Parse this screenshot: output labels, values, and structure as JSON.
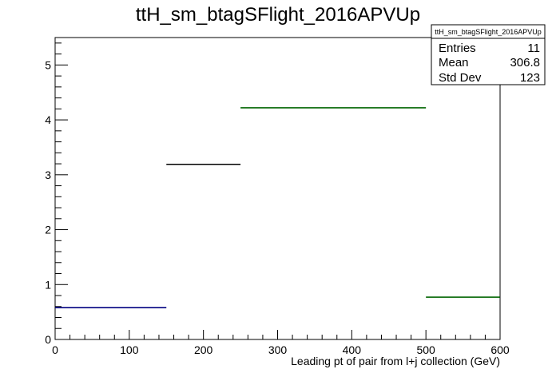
{
  "chart_data": {
    "type": "histogram",
    "title": "ttH_sm_btagSFlight_2016APVUp",
    "xlabel": "Leading pt of pair from l+j collection (GeV)",
    "ylabel": "",
    "xlim": [
      0,
      600
    ],
    "ylim": [
      0,
      5.5
    ],
    "x_ticks": [
      "0",
      "100",
      "200",
      "300",
      "400",
      "500",
      "600"
    ],
    "y_ticks": [
      "0",
      "1",
      "2",
      "3",
      "4",
      "5"
    ],
    "bins": [
      {
        "x0": 0,
        "x1": 150,
        "y": 0.58,
        "color": "#000080"
      },
      {
        "x0": 150,
        "x1": 250,
        "y": 3.19,
        "color": "#000000"
      },
      {
        "x0": 250,
        "x1": 500,
        "y": 4.22,
        "color": "#006400"
      },
      {
        "x0": 500,
        "x1": 600,
        "y": 0.77,
        "color": "#006400"
      }
    ],
    "stats_box": {
      "title": "ttH_sm_btagSFlight_2016APVUp",
      "rows": [
        {
          "label": "Entries",
          "value": "11"
        },
        {
          "label": "Mean",
          "value": "306.8"
        },
        {
          "label": "Std Dev",
          "value": "123"
        }
      ]
    },
    "grid": false,
    "legend": "none"
  }
}
